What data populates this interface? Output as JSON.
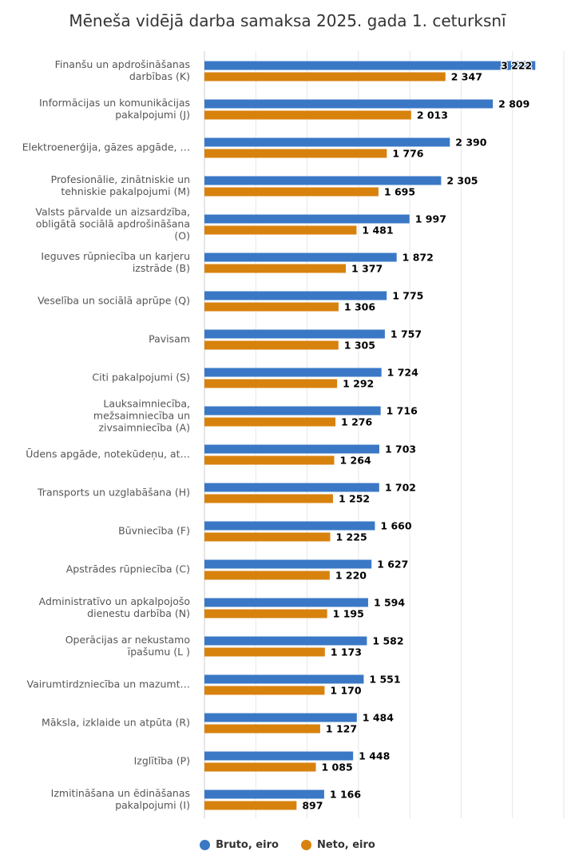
{
  "chart_data": {
    "type": "bar",
    "orientation": "horizontal",
    "title": "Mēneša vidējā darba samaksa 2025. gada 1. ceturksnī",
    "categories": [
      [
        "Finanšu un apdrošināšanas",
        "darbības (K)"
      ],
      [
        "Informācijas un komunikācijas",
        "pakalpojumi (J)"
      ],
      [
        "Elektroenerģija, gāzes apgāde, …"
      ],
      [
        "Profesionālie, zinātniskie un",
        "tehniskie pakalpojumi (M)"
      ],
      [
        "Valsts pārvalde un aizsardzība,",
        "obligātā sociālā apdrošināšana",
        "(O)"
      ],
      [
        "Ieguves rūpniecība un karjeru",
        "izstrāde (B)"
      ],
      [
        "Veselība un sociālā aprūpe (Q)"
      ],
      [
        "Pavisam"
      ],
      [
        "Citi pakalpojumi (S)"
      ],
      [
        "Lauksaimniecība,",
        "mežsaimniecība un",
        "zivsaimniecība (A)"
      ],
      [
        "Ūdens apgāde, notekūdeņu, at…"
      ],
      [
        "Transports un uzglabāšana (H)"
      ],
      [
        "Būvniecība (F)"
      ],
      [
        "Apstrādes rūpniecība (C)"
      ],
      [
        "Administratīvo un apkalpojošo",
        "dienestu darbība (N)"
      ],
      [
        "Operācijas ar nekustamo",
        "īpašumu (L )"
      ],
      [
        "Vairumtirdzniecība un mazumt…"
      ],
      [
        "Māksla, izklaide un atpūta (R)"
      ],
      [
        "Izglītība (P)"
      ],
      [
        "Izmitināšana un ēdināšanas",
        "pakalpojumi (I)"
      ]
    ],
    "series": [
      {
        "name": "Bruto, eiro",
        "color": "#3a78c6",
        "values": [
          3222,
          2809,
          2390,
          2305,
          1997,
          1872,
          1775,
          1757,
          1724,
          1716,
          1703,
          1702,
          1660,
          1627,
          1594,
          1582,
          1551,
          1484,
          1448,
          1166
        ],
        "labels": [
          "3 222",
          "2 809",
          "2 390",
          "2 305",
          "1 997",
          "1 872",
          "1 775",
          "1 757",
          "1 724",
          "1 716",
          "1 703",
          "1 702",
          "1 660",
          "1 627",
          "1 594",
          "1 582",
          "1 551",
          "1 484",
          "1 448",
          "1 166"
        ]
      },
      {
        "name": "Neto, eiro",
        "color": "#d8820e",
        "values": [
          2347,
          2013,
          1776,
          1695,
          1481,
          1377,
          1306,
          1305,
          1292,
          1276,
          1264,
          1252,
          1225,
          1220,
          1195,
          1173,
          1170,
          1127,
          1085,
          897
        ],
        "labels": [
          "2 347",
          "2 013",
          "1 776",
          "1 695",
          "1 481",
          "1 377",
          "1 306",
          "1 305",
          "1 292",
          "1 276",
          "1 264",
          "1 252",
          "1 225",
          "1 220",
          "1 195",
          "1 173",
          "1 170",
          "1 127",
          "1 085",
          "897"
        ]
      }
    ],
    "xlim": [
      0,
      3500
    ],
    "x_gridline_step": 500,
    "grid": true,
    "legend_position": "bottom-center"
  }
}
